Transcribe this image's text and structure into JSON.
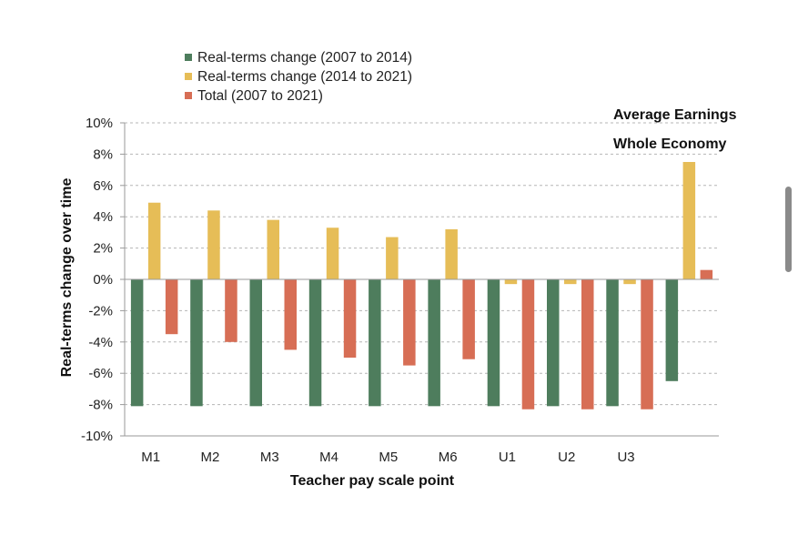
{
  "chart_data": {
    "type": "bar",
    "categories": [
      "M1",
      "M2",
      "M3",
      "M4",
      "M5",
      "M6",
      "U1",
      "U2",
      "U3",
      ""
    ],
    "series": [
      {
        "name": "Real-terms change (2007 to 2014)",
        "color": "#4e7d5d",
        "values": [
          -8.1,
          -8.1,
          -8.1,
          -8.1,
          -8.1,
          -8.1,
          -8.1,
          -8.1,
          -8.1,
          -6.5
        ]
      },
      {
        "name": "Real-terms change (2014 to 2021)",
        "color": "#e6bd57",
        "values": [
          4.9,
          4.4,
          3.8,
          3.3,
          2.7,
          3.2,
          -0.3,
          -0.3,
          -0.3,
          7.5
        ]
      },
      {
        "name": "Total (2007 to 2021)",
        "color": "#d76e55",
        "values": [
          -3.5,
          -4.0,
          -4.5,
          -5.0,
          -5.5,
          -5.1,
          -8.3,
          -8.3,
          -8.3,
          0.6
        ]
      }
    ],
    "ylim": [
      -10,
      10
    ],
    "yticks": [
      10,
      8,
      6,
      4,
      2,
      0,
      -2,
      -4,
      -6,
      -8,
      -10
    ],
    "ytick_labels": [
      "10%",
      "8%",
      "6%",
      "4%",
      "2%",
      "0%",
      "-2%",
      "-4%",
      "-6%",
      "-8%",
      "-10%"
    ],
    "xlabel": "Teacher pay scale point",
    "ylabel": "Real-terms change over time",
    "annotations": [
      "Average Earnings",
      "Whole Economy"
    ],
    "grid": "horizontal dashed",
    "legend_position": "top-left"
  }
}
